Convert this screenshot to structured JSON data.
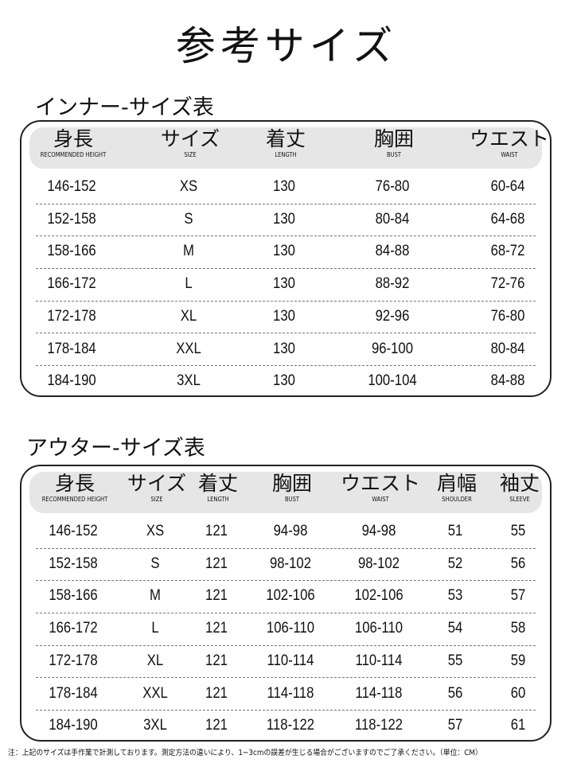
{
  "title": "参考サイズ",
  "inner": {
    "title": "インナー-サイズ表",
    "headers": [
      {
        "jp": "身長",
        "en": "RECOMMENDED HEIGHT"
      },
      {
        "jp": "サイズ",
        "en": "SIZE"
      },
      {
        "jp": "着丈",
        "en": "LENGTH"
      },
      {
        "jp": "胸囲",
        "en": "BUST"
      },
      {
        "jp": "ウエスト",
        "en": "WAIST"
      }
    ],
    "rows": [
      [
        "146-152",
        "XS",
        "130",
        "76-80",
        "60-64"
      ],
      [
        "152-158",
        "S",
        "130",
        "80-84",
        "64-68"
      ],
      [
        "158-166",
        "M",
        "130",
        "84-88",
        "68-72"
      ],
      [
        "166-172",
        "L",
        "130",
        "88-92",
        "72-76"
      ],
      [
        "172-178",
        "XL",
        "130",
        "92-96",
        "76-80"
      ],
      [
        "178-184",
        "XXL",
        "130",
        "96-100",
        "80-84"
      ],
      [
        "184-190",
        "3XL",
        "130",
        "100-104",
        "84-88"
      ]
    ]
  },
  "outer": {
    "title": "アウター-サイズ表",
    "headers": [
      {
        "jp": "身長",
        "en": "RECOMMENDED HEIGHT"
      },
      {
        "jp": "サイズ",
        "en": "SIZE"
      },
      {
        "jp": "着丈",
        "en": "LENGTH"
      },
      {
        "jp": "胸囲",
        "en": "BUST"
      },
      {
        "jp": "ウエスト",
        "en": "WAIST"
      },
      {
        "jp": "肩幅",
        "en": "SHOULDER"
      },
      {
        "jp": "袖丈",
        "en": "SLEEVE"
      }
    ],
    "rows": [
      [
        "146-152",
        "XS",
        "121",
        "94-98",
        "94-98",
        "51",
        "55"
      ],
      [
        "152-158",
        "S",
        "121",
        "98-102",
        "98-102",
        "52",
        "56"
      ],
      [
        "158-166",
        "M",
        "121",
        "102-106",
        "102-106",
        "53",
        "57"
      ],
      [
        "166-172",
        "L",
        "121",
        "106-110",
        "106-110",
        "54",
        "58"
      ],
      [
        "172-178",
        "XL",
        "121",
        "110-114",
        "110-114",
        "55",
        "59"
      ],
      [
        "178-184",
        "XXL",
        "121",
        "114-118",
        "114-118",
        "56",
        "60"
      ],
      [
        "184-190",
        "3XL",
        "121",
        "118-122",
        "118-122",
        "57",
        "61"
      ]
    ]
  },
  "note": "注：上記のサイズは手作業で計測しております。測定方法の違いにより、1~3cmの誤差が生じる場合がございますのでご了承ください。（単位：CM）"
}
